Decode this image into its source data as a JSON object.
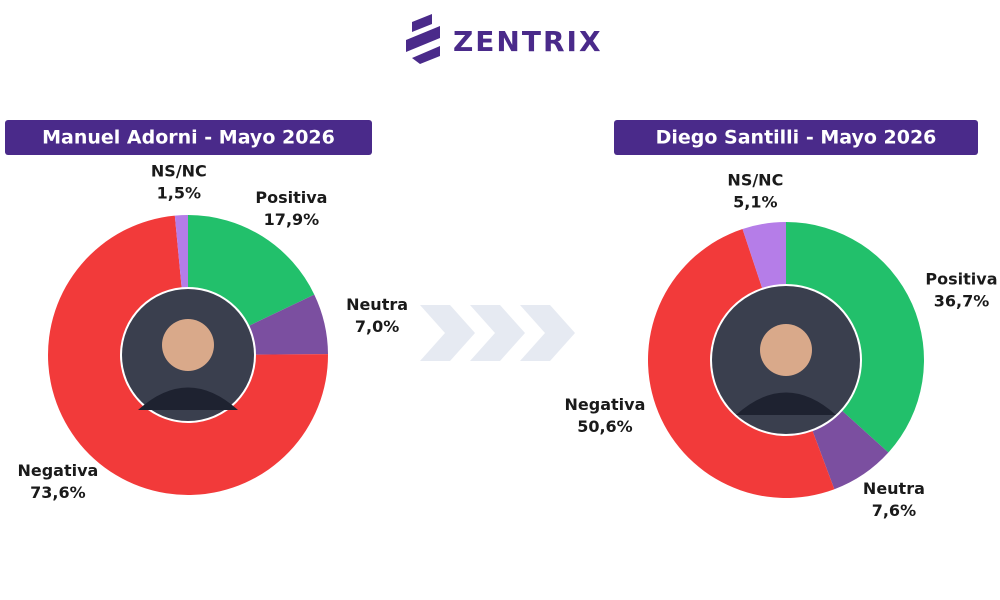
{
  "brand": "ZENTRIX",
  "chart_data": [
    {
      "type": "pie",
      "title": "Manuel Adorni - Mayo 2026",
      "categories": [
        "Positiva",
        "Neutra",
        "Negativa",
        "NS/NC"
      ],
      "values": [
        17.9,
        7.0,
        73.6,
        1.5
      ],
      "value_labels": [
        "17,9%",
        "7,0%",
        "73,6%",
        "1,5%"
      ],
      "colors": [
        "#22c06b",
        "#7b4fa0",
        "#f23a3a",
        "#b57de8"
      ]
    },
    {
      "type": "pie",
      "title": "Diego Santilli - Mayo 2026",
      "categories": [
        "Positiva",
        "Neutra",
        "Negativa",
        "NS/NC"
      ],
      "values": [
        36.7,
        7.6,
        50.6,
        5.1
      ],
      "value_labels": [
        "36,7%",
        "7,6%",
        "50,6%",
        "5,1%"
      ],
      "colors": [
        "#22c06b",
        "#7b4fa0",
        "#f23a3a",
        "#b57de8"
      ]
    }
  ]
}
